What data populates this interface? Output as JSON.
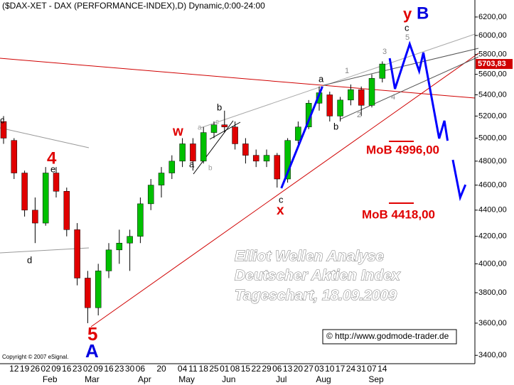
{
  "chart_data": {
    "type": "candlestick",
    "title": "($DAX-XET - DAX (PERFORMANCE-INDEX),D) Dynamic,0:00-24:00",
    "categories": [
      null,
      "12",
      "19",
      "26",
      "02",
      "09",
      "16",
      "23",
      "02",
      "09",
      "16",
      "23",
      "30",
      "06",
      null,
      "20",
      null,
      "04",
      "11",
      "18",
      "25",
      "01",
      "08",
      "15",
      "22",
      "29",
      "06",
      "13",
      "20",
      "27",
      "03",
      "10",
      "17",
      "24",
      "31",
      "07",
      "14"
    ],
    "month_labels": [
      null,
      null,
      null,
      null,
      "Feb",
      null,
      null,
      null,
      "Mar",
      null,
      null,
      null,
      null,
      "Apr",
      null,
      null,
      null,
      "May",
      null,
      null,
      null,
      "Jun",
      null,
      null,
      null,
      null,
      "Jul",
      null,
      null,
      null,
      "Aug",
      null,
      null,
      null,
      null,
      "Sep",
      null
    ],
    "open": [
      5150,
      4980,
      4700,
      4400,
      4300,
      4700,
      4550,
      4250,
      3900,
      3700,
      3950,
      4100,
      4150,
      4200,
      4450,
      4600,
      4700,
      4800,
      4950,
      4800,
      5050,
      5120,
      5100,
      4950,
      4850,
      4800,
      4850,
      4650,
      4980,
      5100,
      5320,
      5400,
      5200,
      5350,
      5450,
      5300,
      5560
    ],
    "high": [
      5200,
      5000,
      4720,
      4500,
      4750,
      4750,
      4580,
      4300,
      3950,
      4000,
      4150,
      4250,
      4250,
      4500,
      4650,
      4750,
      4850,
      5000,
      5000,
      5100,
      5150,
      5250,
      5150,
      5000,
      4900,
      4900,
      4870,
      5000,
      5150,
      5350,
      5480,
      5430,
      5380,
      5500,
      5480,
      5600,
      5730
    ],
    "low": [
      4950,
      4650,
      4350,
      4150,
      4280,
      4500,
      4200,
      3850,
      3600,
      3650,
      3900,
      4000,
      3950,
      4150,
      4400,
      4500,
      4650,
      4750,
      4720,
      4780,
      5000,
      5050,
      4900,
      4780,
      4750,
      4750,
      4580,
      4620,
      4950,
      5080,
      5250,
      5150,
      5150,
      5300,
      5200,
      5280,
      5520
    ],
    "close": [
      5000,
      4700,
      4400,
      4300,
      4700,
      4550,
      4250,
      3900,
      3700,
      3950,
      4100,
      4150,
      4200,
      4450,
      4600,
      4700,
      4800,
      4950,
      4800,
      5050,
      5120,
      5100,
      4950,
      4850,
      4800,
      4850,
      4650,
      4980,
      5100,
      5320,
      5420,
      5200,
      5350,
      5450,
      5300,
      5560,
      5703.83
    ],
    "up_color": "#00c000",
    "down_color": "#e00000",
    "last_price": {
      "value": 5703.83,
      "label": "5703,83"
    },
    "projection": {
      "color": "#0000ff",
      "x": [
        36.7,
        37.2,
        38.6,
        39.5,
        39.9,
        41.4,
        41.9,
        42.2,
        null,
        42.7,
        43.4,
        43.9
      ],
      "values": [
        5762,
        5457,
        5910,
        5632,
        5820,
        4997,
        5157,
        4977,
        null,
        4811,
        4500,
        4603
      ]
    },
    "impulse": {
      "color": "#0000ff",
      "x": [
        26.4,
        30.3
      ],
      "values": [
        4575,
        5479
      ]
    },
    "log_scale": true,
    "ylim": [
      3350,
      6390
    ],
    "yticks": [
      {
        "value": 3400,
        "label": "3400,00"
      },
      {
        "value": 3600,
        "label": "3600,00"
      },
      {
        "value": 3800,
        "label": "3800,00"
      },
      {
        "value": 4000,
        "label": "4000,00"
      },
      {
        "value": 4200,
        "label": "4200,00"
      },
      {
        "value": 4400,
        "label": "4400,00"
      },
      {
        "value": 4600,
        "label": "4600,00"
      },
      {
        "value": 4800,
        "label": "4800,00"
      },
      {
        "value": 5000,
        "label": "5000,00"
      },
      {
        "value": 5200,
        "label": "5200,00"
      },
      {
        "value": 5400,
        "label": "5400,00"
      },
      {
        "value": 5600,
        "label": "5600,00"
      },
      {
        "value": 5800,
        "label": "5800,00"
      },
      {
        "value": 6000,
        "label": "6000,00"
      },
      {
        "value": 6200,
        "label": "6200,00"
      }
    ],
    "annotations": [
      "y",
      "B",
      "c",
      "5",
      "3",
      "1",
      "2",
      "4",
      "a",
      "b",
      "c",
      "d",
      "e",
      "4",
      "w",
      "a",
      "c",
      "b",
      "a",
      "b",
      "c",
      "x",
      "5",
      "A",
      "MoB 4996,00",
      "MoB 4418,00",
      "Elliot Wellen Analyse",
      "Deutscher Aktien Index",
      "Tageschart, 18.09.2009",
      "© http://www.godmode-trader.de",
      "Copyright © 2007 eSignal."
    ]
  }
}
